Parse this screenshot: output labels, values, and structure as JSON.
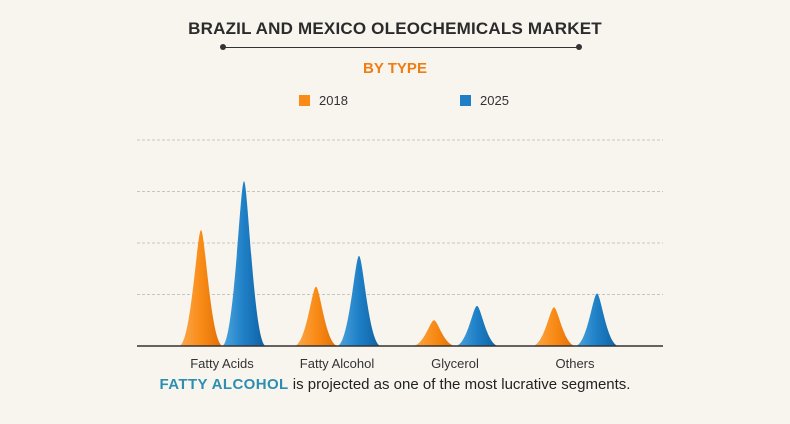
{
  "header": {
    "title": "BRAZIL AND MEXICO OLEOCHEMICALS MARKET",
    "subtitle": "BY TYPE"
  },
  "colors": {
    "series_2018": "#f98b16",
    "series_2025": "#1e7fc6",
    "gridline": "#c9c6bf",
    "axis": "#333333",
    "subtitle": "#f07d14",
    "highlight": "#2c8fb1"
  },
  "chart_data": {
    "type": "area",
    "style": "peaked mountain columns",
    "title": "BRAZIL AND MEXICO OLEOCHEMICALS MARKET",
    "subtitle": "BY TYPE",
    "xlabel": "",
    "ylabel": "",
    "y_axis_labels_shown": false,
    "ylim": [
      0,
      4
    ],
    "grid": true,
    "gridlines": [
      1,
      2,
      3,
      4
    ],
    "legend_position": "top",
    "categories": [
      "Fatty Acids",
      "Fatty Alcohol",
      "Glycerol",
      "Others"
    ],
    "series": [
      {
        "name": "2018",
        "color": "#f98b16",
        "values": [
          2.25,
          1.15,
          0.5,
          0.75
        ]
      },
      {
        "name": "2025",
        "color": "#1e7fc6",
        "values": [
          3.2,
          1.75,
          0.78,
          1.02
        ]
      }
    ]
  },
  "footer": {
    "highlight": "FATTY ALCOHOL",
    "text": " is projected as one of the most lucrative segments."
  }
}
